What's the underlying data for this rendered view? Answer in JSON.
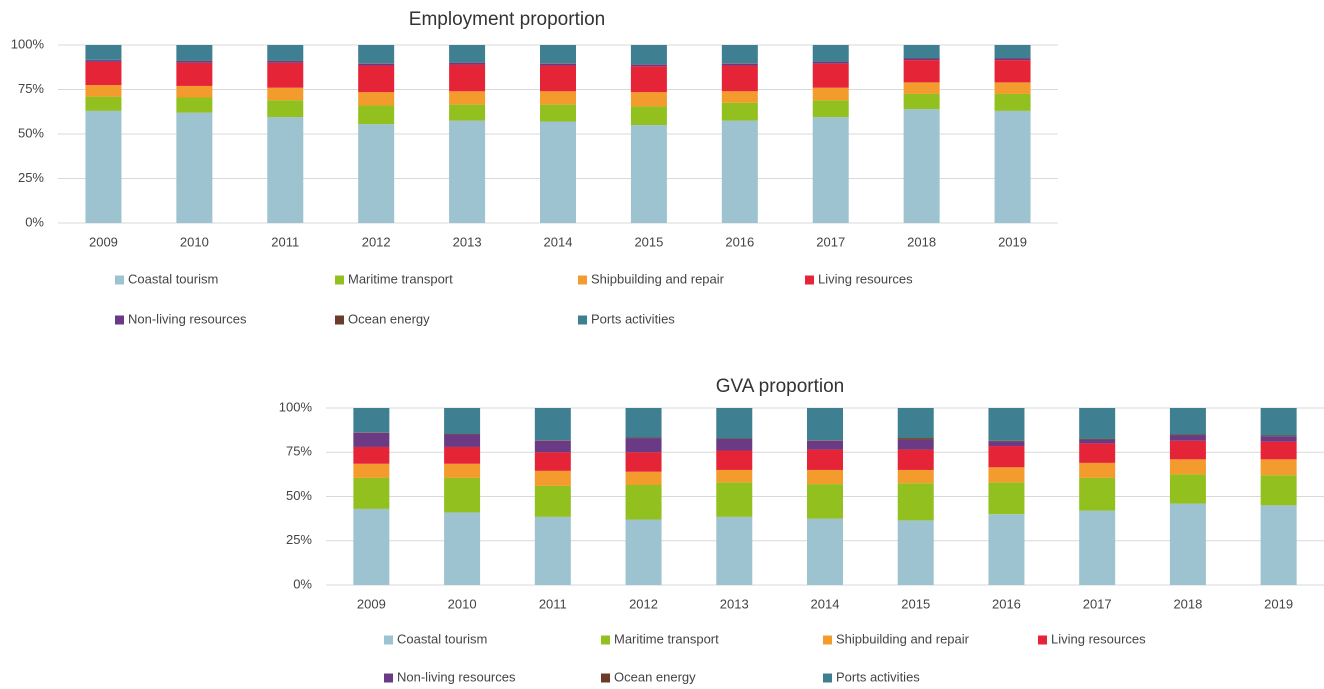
{
  "chart_data": [
    {
      "type": "stacked_bar",
      "title": "Employment proportion",
      "categories": [
        "2009",
        "2010",
        "2011",
        "2012",
        "2013",
        "2014",
        "2015",
        "2016",
        "2017",
        "2018",
        "2019"
      ],
      "ylim": [
        0,
        100
      ],
      "yticks": [
        {
          "value": 0,
          "label": "0%"
        },
        {
          "value": 25,
          "label": "25%"
        },
        {
          "value": 50,
          "label": "50%"
        },
        {
          "value": 75,
          "label": "75%"
        },
        {
          "value": 100,
          "label": "100%"
        }
      ],
      "grid": true,
      "legend": "bottom",
      "series": [
        {
          "name": "Coastal tourism",
          "color": "#9dc3d0",
          "values": [
            63,
            62,
            59.5,
            55.5,
            57.5,
            57,
            55,
            57.5,
            59.5,
            64,
            63
          ]
        },
        {
          "name": "Maritime transport",
          "color": "#92c01f",
          "values": [
            8,
            8.5,
            9.5,
            10.5,
            9,
            9.5,
            10.5,
            10,
            9.5,
            8.5,
            9.5
          ]
        },
        {
          "name": "Shipbuilding and repair",
          "color": "#f39b2c",
          "values": [
            6.5,
            6.5,
            7,
            7.5,
            7.5,
            7.5,
            8,
            6.5,
            7,
            6.5,
            6.5
          ]
        },
        {
          "name": "Living resources",
          "color": "#e62438",
          "values": [
            13,
            13,
            14,
            15,
            15,
            14.5,
            14.5,
            14.5,
            13.5,
            12.5,
            12.5
          ]
        },
        {
          "name": "Non-living resources",
          "color": "#6a3b84",
          "values": [
            1,
            1,
            1,
            1,
            1,
            1,
            1,
            1,
            1,
            1,
            1
          ]
        },
        {
          "name": "Ocean energy",
          "color": "#6b3a2a",
          "values": [
            0.2,
            0.2,
            0.2,
            0.2,
            0.2,
            0.2,
            0.2,
            0.2,
            0.2,
            0.2,
            0.2
          ]
        },
        {
          "name": "Ports activities",
          "color": "#3f7f92",
          "values": [
            8.3,
            8.8,
            8.8,
            10.3,
            9.8,
            10.3,
            10.8,
            10.3,
            9.3,
            7.3,
            7.3
          ]
        }
      ]
    },
    {
      "type": "stacked_bar",
      "title": "GVA proportion",
      "categories": [
        "2009",
        "2010",
        "2011",
        "2012",
        "2013",
        "2014",
        "2015",
        "2016",
        "2017",
        "2018",
        "2019"
      ],
      "ylim": [
        0,
        100
      ],
      "yticks": [
        {
          "value": 0,
          "label": "0%"
        },
        {
          "value": 25,
          "label": "25%"
        },
        {
          "value": 50,
          "label": "50%"
        },
        {
          "value": 75,
          "label": "75%"
        },
        {
          "value": 100,
          "label": "100%"
        }
      ],
      "grid": true,
      "legend": "bottom",
      "series": [
        {
          "name": "Coastal tourism",
          "color": "#9dc3d0",
          "values": [
            43,
            41,
            38.5,
            37,
            38.5,
            37.5,
            36.5,
            40,
            42,
            46,
            45
          ]
        },
        {
          "name": "Maritime transport",
          "color": "#92c01f",
          "values": [
            17.5,
            19.5,
            17.5,
            19.5,
            19.5,
            19.5,
            21,
            18,
            18.5,
            16.5,
            17
          ]
        },
        {
          "name": "Shipbuilding and repair",
          "color": "#f39b2c",
          "values": [
            8,
            8,
            8.5,
            7.5,
            7,
            8,
            7.5,
            8.5,
            8.5,
            8.5,
            9
          ]
        },
        {
          "name": "Living resources",
          "color": "#e62438",
          "values": [
            9.5,
            9.5,
            10.5,
            11,
            11,
            11.5,
            11.5,
            12,
            11,
            10.5,
            10
          ]
        },
        {
          "name": "Non-living resources",
          "color": "#6a3b84",
          "values": [
            8,
            7,
            6.5,
            8,
            6.5,
            5,
            5.5,
            2.5,
            2,
            3,
            3
          ]
        },
        {
          "name": "Ocean energy",
          "color": "#6b3a2a",
          "values": [
            0.3,
            0.3,
            0.3,
            0.3,
            0.3,
            0.3,
            1,
            0.5,
            0.5,
            0.5,
            0.5
          ]
        },
        {
          "name": "Ports activities",
          "color": "#3f7f92",
          "values": [
            13.7,
            14.7,
            18.2,
            16.7,
            17.2,
            18.2,
            17,
            18.5,
            17.5,
            15,
            15.5
          ]
        }
      ]
    }
  ]
}
